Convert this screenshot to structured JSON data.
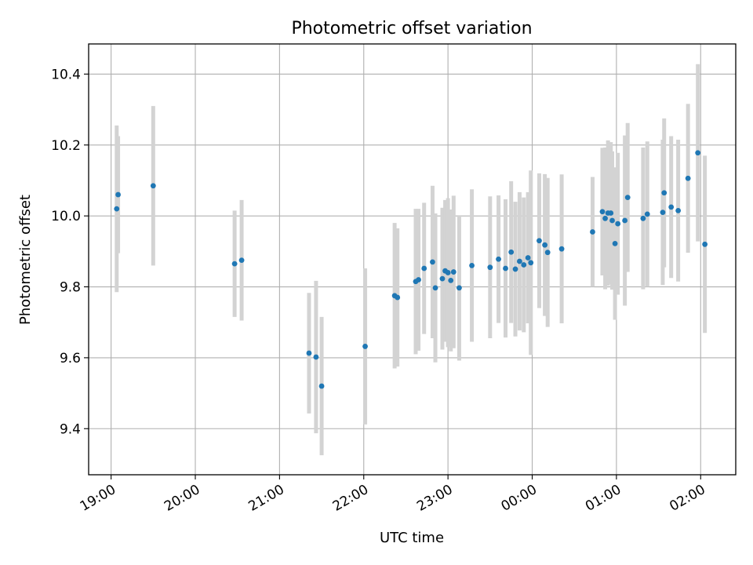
{
  "chart_data": {
    "type": "scatter",
    "title": "Photometric offset variation",
    "xlabel": "UTC time",
    "ylabel": "Photometric offset",
    "grid": true,
    "legend": "none",
    "x_is_time": true,
    "xlim": [
      "18:44",
      "02:25"
    ],
    "ylim": [
      9.27,
      10.485
    ],
    "x_ticks": [
      "19:00",
      "20:00",
      "21:00",
      "22:00",
      "23:00",
      "00:00",
      "01:00",
      "02:00"
    ],
    "y_ticks": [
      "9.4",
      "9.6",
      "9.8",
      "10.0",
      "10.2",
      "10.4"
    ],
    "colors": {
      "point": "#1f77b4",
      "errorbar": "#d3d3d3",
      "grid": "#b0b0b0"
    },
    "series": [
      {
        "x": [
          "19:04",
          "19:05",
          "19:30",
          "20:28",
          "20:33",
          "21:21",
          "21:26",
          "21:30",
          "22:01",
          "22:22",
          "22:24",
          "22:37",
          "22:39",
          "22:43",
          "22:49",
          "22:51",
          "22:56",
          "22:58",
          "23:00",
          "23:02",
          "23:04",
          "23:08",
          "23:17",
          "23:30",
          "23:36",
          "23:41",
          "23:45",
          "23:48",
          "23:51",
          "23:54",
          "23:57",
          "23:59",
          "00:05",
          "00:09",
          "00:11",
          "00:21",
          "00:43",
          "00:50",
          "00:52",
          "00:54",
          "00:56",
          "00:57",
          "00:59",
          "01:01",
          "01:06",
          "01:08",
          "01:19",
          "01:22",
          "01:33",
          "01:34",
          "01:39",
          "01:44",
          "01:51",
          "01:58"
        ],
        "y": [
          10.02,
          10.06,
          10.085,
          9.865,
          9.875,
          9.613,
          9.602,
          9.52,
          9.632,
          9.775,
          9.77,
          9.815,
          9.82,
          9.852,
          9.87,
          9.797,
          9.823,
          9.845,
          9.84,
          9.818,
          9.842,
          9.797,
          9.86,
          9.855,
          9.878,
          9.852,
          9.898,
          9.85,
          9.872,
          9.862,
          9.882,
          9.868,
          9.93,
          9.918,
          9.897,
          9.907,
          9.955,
          10.012,
          9.993,
          10.008,
          10.008,
          9.987,
          9.922,
          9.978,
          9.987,
          10.052,
          9.993,
          10.005,
          10.01,
          10.065,
          10.025,
          10.015,
          10.106,
          10.178
        ],
        "error": [
          0.235,
          0.165,
          0.225,
          0.15,
          0.17,
          0.17,
          0.215,
          0.195,
          0.22,
          0.205,
          0.195,
          0.205,
          0.2,
          0.185,
          0.215,
          0.21,
          0.2,
          0.2,
          0.21,
          0.2,
          0.215,
          0.205,
          0.215,
          0.2,
          0.18,
          0.195,
          0.2,
          0.19,
          0.195,
          0.19,
          0.185,
          0.26,
          0.19,
          0.2,
          0.21,
          0.21,
          0.155,
          0.18,
          0.2,
          0.205,
          0.2,
          0.195,
          0.215,
          0.2,
          0.24,
          0.21,
          0.2,
          0.205,
          0.205,
          0.21,
          0.2,
          0.2,
          0.21,
          0.25
        ]
      }
    ],
    "extra_points": [
      {
        "x": "02:03",
        "y": 9.92,
        "error": 0.25
      }
    ]
  }
}
